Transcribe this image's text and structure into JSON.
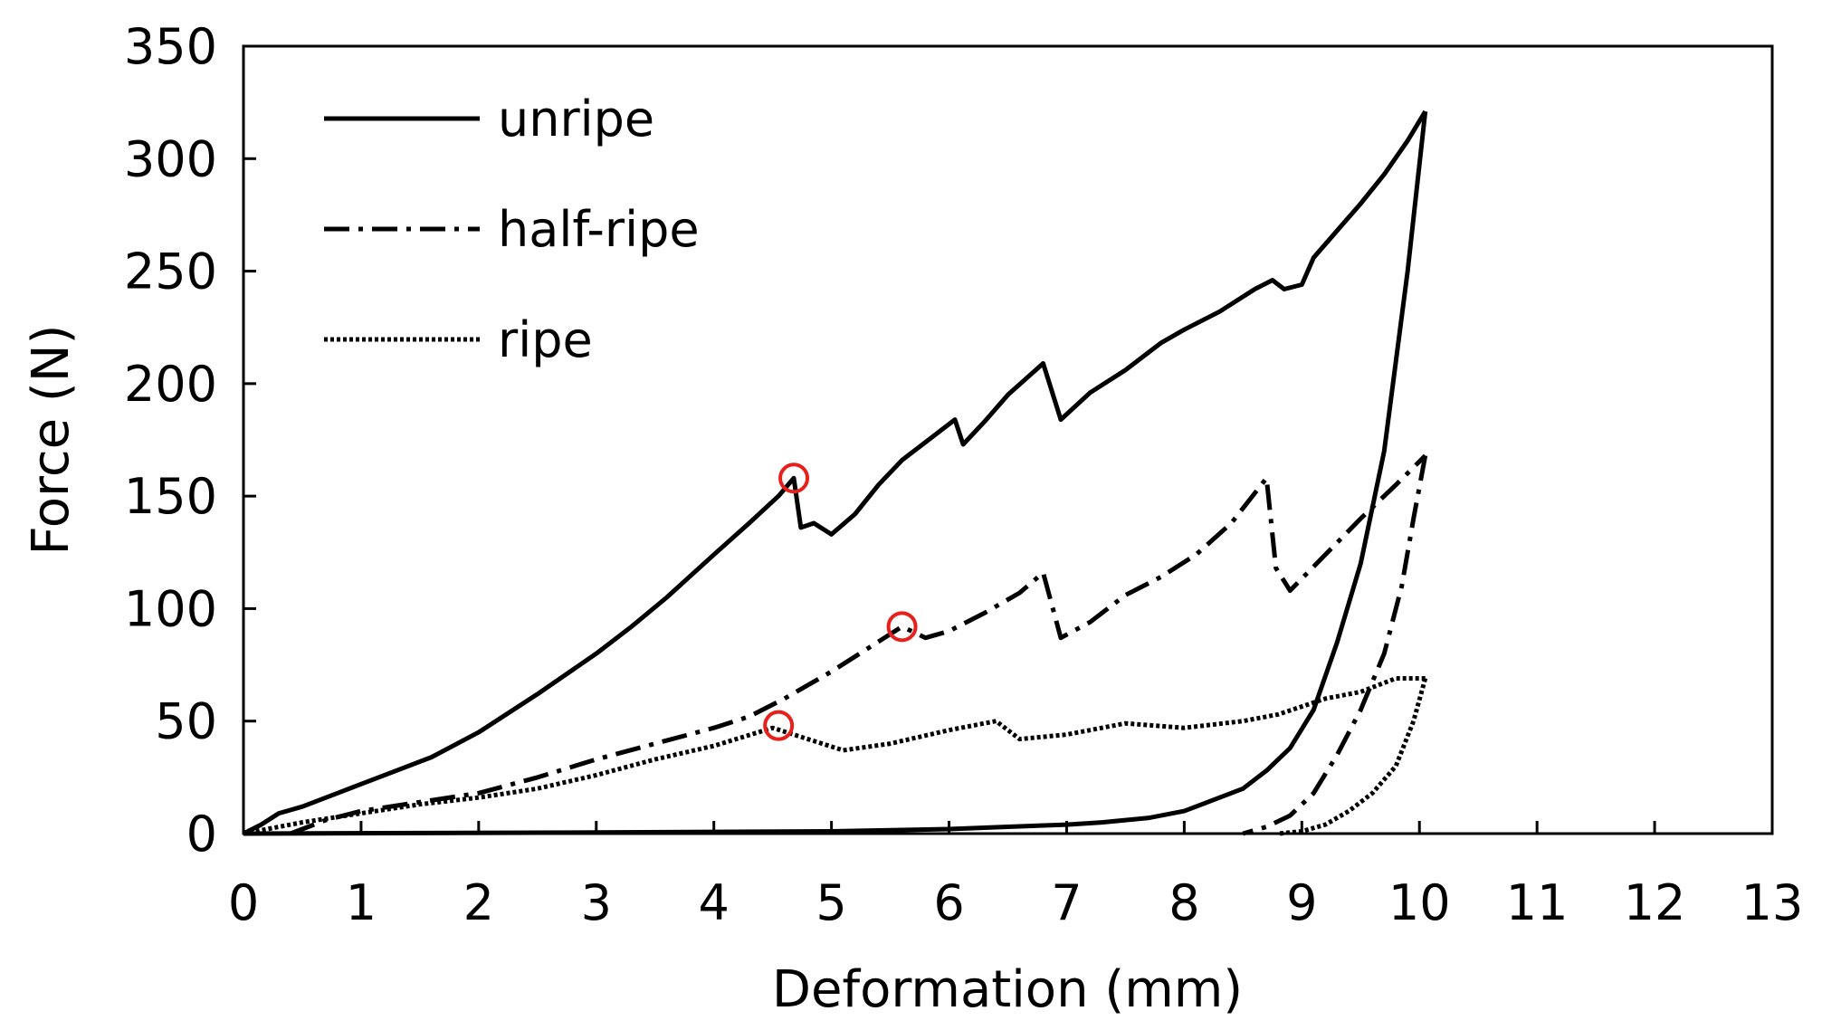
{
  "chart_data": {
    "type": "line",
    "title": "",
    "xlabel": "Deformation (mm)",
    "ylabel": "Force (N)",
    "xlim": [
      0,
      13
    ],
    "ylim": [
      0,
      350
    ],
    "xticks": [
      0,
      1,
      2,
      3,
      4,
      5,
      6,
      7,
      8,
      9,
      10,
      11,
      12,
      13
    ],
    "yticks": [
      0,
      50,
      100,
      150,
      200,
      250,
      300,
      350
    ],
    "legend_position": "top-left",
    "marker_color": "#e8201c",
    "series": [
      {
        "name": "unripe",
        "style": "solid",
        "loading": [
          [
            0,
            0
          ],
          [
            0.15,
            4
          ],
          [
            0.3,
            9
          ],
          [
            0.5,
            12
          ],
          [
            0.8,
            18
          ],
          [
            1,
            22
          ],
          [
            1.3,
            28
          ],
          [
            1.6,
            34
          ],
          [
            2,
            45
          ],
          [
            2.5,
            62
          ],
          [
            3,
            80
          ],
          [
            3.3,
            92
          ],
          [
            3.6,
            105
          ],
          [
            4,
            124
          ],
          [
            4.3,
            138
          ],
          [
            4.55,
            150
          ],
          [
            4.68,
            158
          ],
          [
            4.74,
            136
          ],
          [
            4.85,
            138
          ],
          [
            5,
            133
          ],
          [
            5.2,
            142
          ],
          [
            5.4,
            155
          ],
          [
            5.6,
            166
          ],
          [
            5.8,
            174
          ],
          [
            6.05,
            184
          ],
          [
            6.12,
            173
          ],
          [
            6.3,
            183
          ],
          [
            6.5,
            195
          ],
          [
            6.8,
            209
          ],
          [
            6.95,
            184
          ],
          [
            7.2,
            196
          ],
          [
            7.5,
            206
          ],
          [
            7.8,
            218
          ],
          [
            8,
            224
          ],
          [
            8.3,
            232
          ],
          [
            8.6,
            242
          ],
          [
            8.75,
            246
          ],
          [
            8.85,
            242
          ],
          [
            9,
            244
          ],
          [
            9.1,
            256
          ],
          [
            9.3,
            268
          ],
          [
            9.5,
            280
          ],
          [
            9.7,
            293
          ],
          [
            9.9,
            308
          ],
          [
            10.05,
            321
          ]
        ],
        "unloading": [
          [
            10.05,
            321
          ],
          [
            9.9,
            250
          ],
          [
            9.7,
            170
          ],
          [
            9.5,
            120
          ],
          [
            9.3,
            85
          ],
          [
            9.1,
            55
          ],
          [
            8.9,
            38
          ],
          [
            8.7,
            28
          ],
          [
            8.5,
            20
          ],
          [
            8.2,
            14
          ],
          [
            8,
            10
          ],
          [
            7.7,
            7
          ],
          [
            7.3,
            5
          ],
          [
            7,
            4
          ],
          [
            6.5,
            3
          ],
          [
            6,
            2
          ],
          [
            5,
            1
          ],
          [
            3,
            0.5
          ],
          [
            0,
            0
          ]
        ],
        "max_marker": [
          4.68,
          158
        ]
      },
      {
        "name": "half-ripe",
        "style": "dash-dot",
        "loading": [
          [
            0.4,
            0
          ],
          [
            0.7,
            6
          ],
          [
            1,
            10
          ],
          [
            1.5,
            14
          ],
          [
            2,
            18
          ],
          [
            2.5,
            25
          ],
          [
            3,
            33
          ],
          [
            3.5,
            40
          ],
          [
            4,
            47
          ],
          [
            4.3,
            52
          ],
          [
            4.6,
            60
          ],
          [
            5,
            72
          ],
          [
            5.3,
            82
          ],
          [
            5.6,
            92
          ],
          [
            5.8,
            87
          ],
          [
            6,
            90
          ],
          [
            6.3,
            98
          ],
          [
            6.6,
            107
          ],
          [
            6.8,
            116
          ],
          [
            6.95,
            87
          ],
          [
            7.2,
            94
          ],
          [
            7.5,
            106
          ],
          [
            7.8,
            114
          ],
          [
            8.1,
            124
          ],
          [
            8.4,
            138
          ],
          [
            8.7,
            158
          ],
          [
            8.78,
            118
          ],
          [
            8.9,
            108
          ],
          [
            9.2,
            124
          ],
          [
            9.5,
            140
          ],
          [
            9.8,
            155
          ],
          [
            10.05,
            168
          ]
        ],
        "unloading": [
          [
            10.05,
            168
          ],
          [
            9.95,
            140
          ],
          [
            9.85,
            110
          ],
          [
            9.7,
            80
          ],
          [
            9.5,
            55
          ],
          [
            9.3,
            35
          ],
          [
            9.1,
            18
          ],
          [
            8.9,
            8
          ],
          [
            8.7,
            3
          ],
          [
            8.5,
            0
          ]
        ],
        "max_marker": [
          5.6,
          92
        ]
      },
      {
        "name": "ripe",
        "style": "dotted",
        "loading": [
          [
            0,
            0
          ],
          [
            0.5,
            5
          ],
          [
            1,
            9
          ],
          [
            1.5,
            13
          ],
          [
            2,
            16
          ],
          [
            2.5,
            20
          ],
          [
            3,
            26
          ],
          [
            3.5,
            33
          ],
          [
            4,
            39
          ],
          [
            4.5,
            47
          ],
          [
            4.8,
            42
          ],
          [
            5.1,
            37
          ],
          [
            5.5,
            40
          ],
          [
            6,
            46
          ],
          [
            6.4,
            50
          ],
          [
            6.6,
            42
          ],
          [
            7,
            44
          ],
          [
            7.5,
            49
          ],
          [
            8,
            47
          ],
          [
            8.5,
            50
          ],
          [
            8.8,
            53
          ],
          [
            9.2,
            60
          ],
          [
            9.5,
            63
          ],
          [
            9.8,
            69
          ],
          [
            10.05,
            69
          ]
        ],
        "unloading": [
          [
            10.05,
            69
          ],
          [
            9.95,
            50
          ],
          [
            9.8,
            30
          ],
          [
            9.6,
            18
          ],
          [
            9.4,
            10
          ],
          [
            9.2,
            4
          ],
          [
            9,
            1
          ],
          [
            8.8,
            0
          ]
        ],
        "max_marker": [
          4.55,
          48
        ]
      }
    ]
  }
}
